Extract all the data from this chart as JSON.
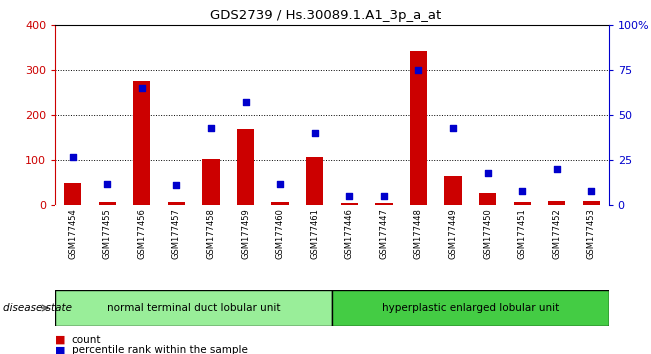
{
  "title": "GDS2739 / Hs.30089.1.A1_3p_a_at",
  "samples": [
    "GSM177454",
    "GSM177455",
    "GSM177456",
    "GSM177457",
    "GSM177458",
    "GSM177459",
    "GSM177460",
    "GSM177461",
    "GSM177446",
    "GSM177447",
    "GSM177448",
    "GSM177449",
    "GSM177450",
    "GSM177451",
    "GSM177452",
    "GSM177453"
  ],
  "counts": [
    50,
    8,
    275,
    8,
    103,
    168,
    8,
    108,
    5,
    5,
    342,
    65,
    28,
    8,
    10,
    10
  ],
  "percentiles": [
    27,
    12,
    65,
    11,
    43,
    57,
    12,
    40,
    5,
    5,
    75,
    43,
    18,
    8,
    20,
    8
  ],
  "group1_label": "normal terminal duct lobular unit",
  "group2_label": "hyperplastic enlarged lobular unit",
  "group1_count": 8,
  "group2_count": 8,
  "bar_color": "#cc0000",
  "dot_color": "#0000cc",
  "bg_color": "#ffffff",
  "tick_bg": "#bbbbbb",
  "group1_bg": "#99ee99",
  "group2_bg": "#44cc44",
  "left_axis_color": "#cc0000",
  "right_axis_color": "#0000cc",
  "ylim_left": [
    0,
    400
  ],
  "ylim_right": [
    0,
    100
  ],
  "left_ticks": [
    0,
    100,
    200,
    300,
    400
  ],
  "right_ticks": [
    0,
    25,
    50,
    75,
    100
  ],
  "right_tick_labels": [
    "0",
    "25",
    "50",
    "75",
    "100%"
  ],
  "disease_state_label": "disease state",
  "legend_count_label": "count",
  "legend_pct_label": "percentile rank within the sample"
}
